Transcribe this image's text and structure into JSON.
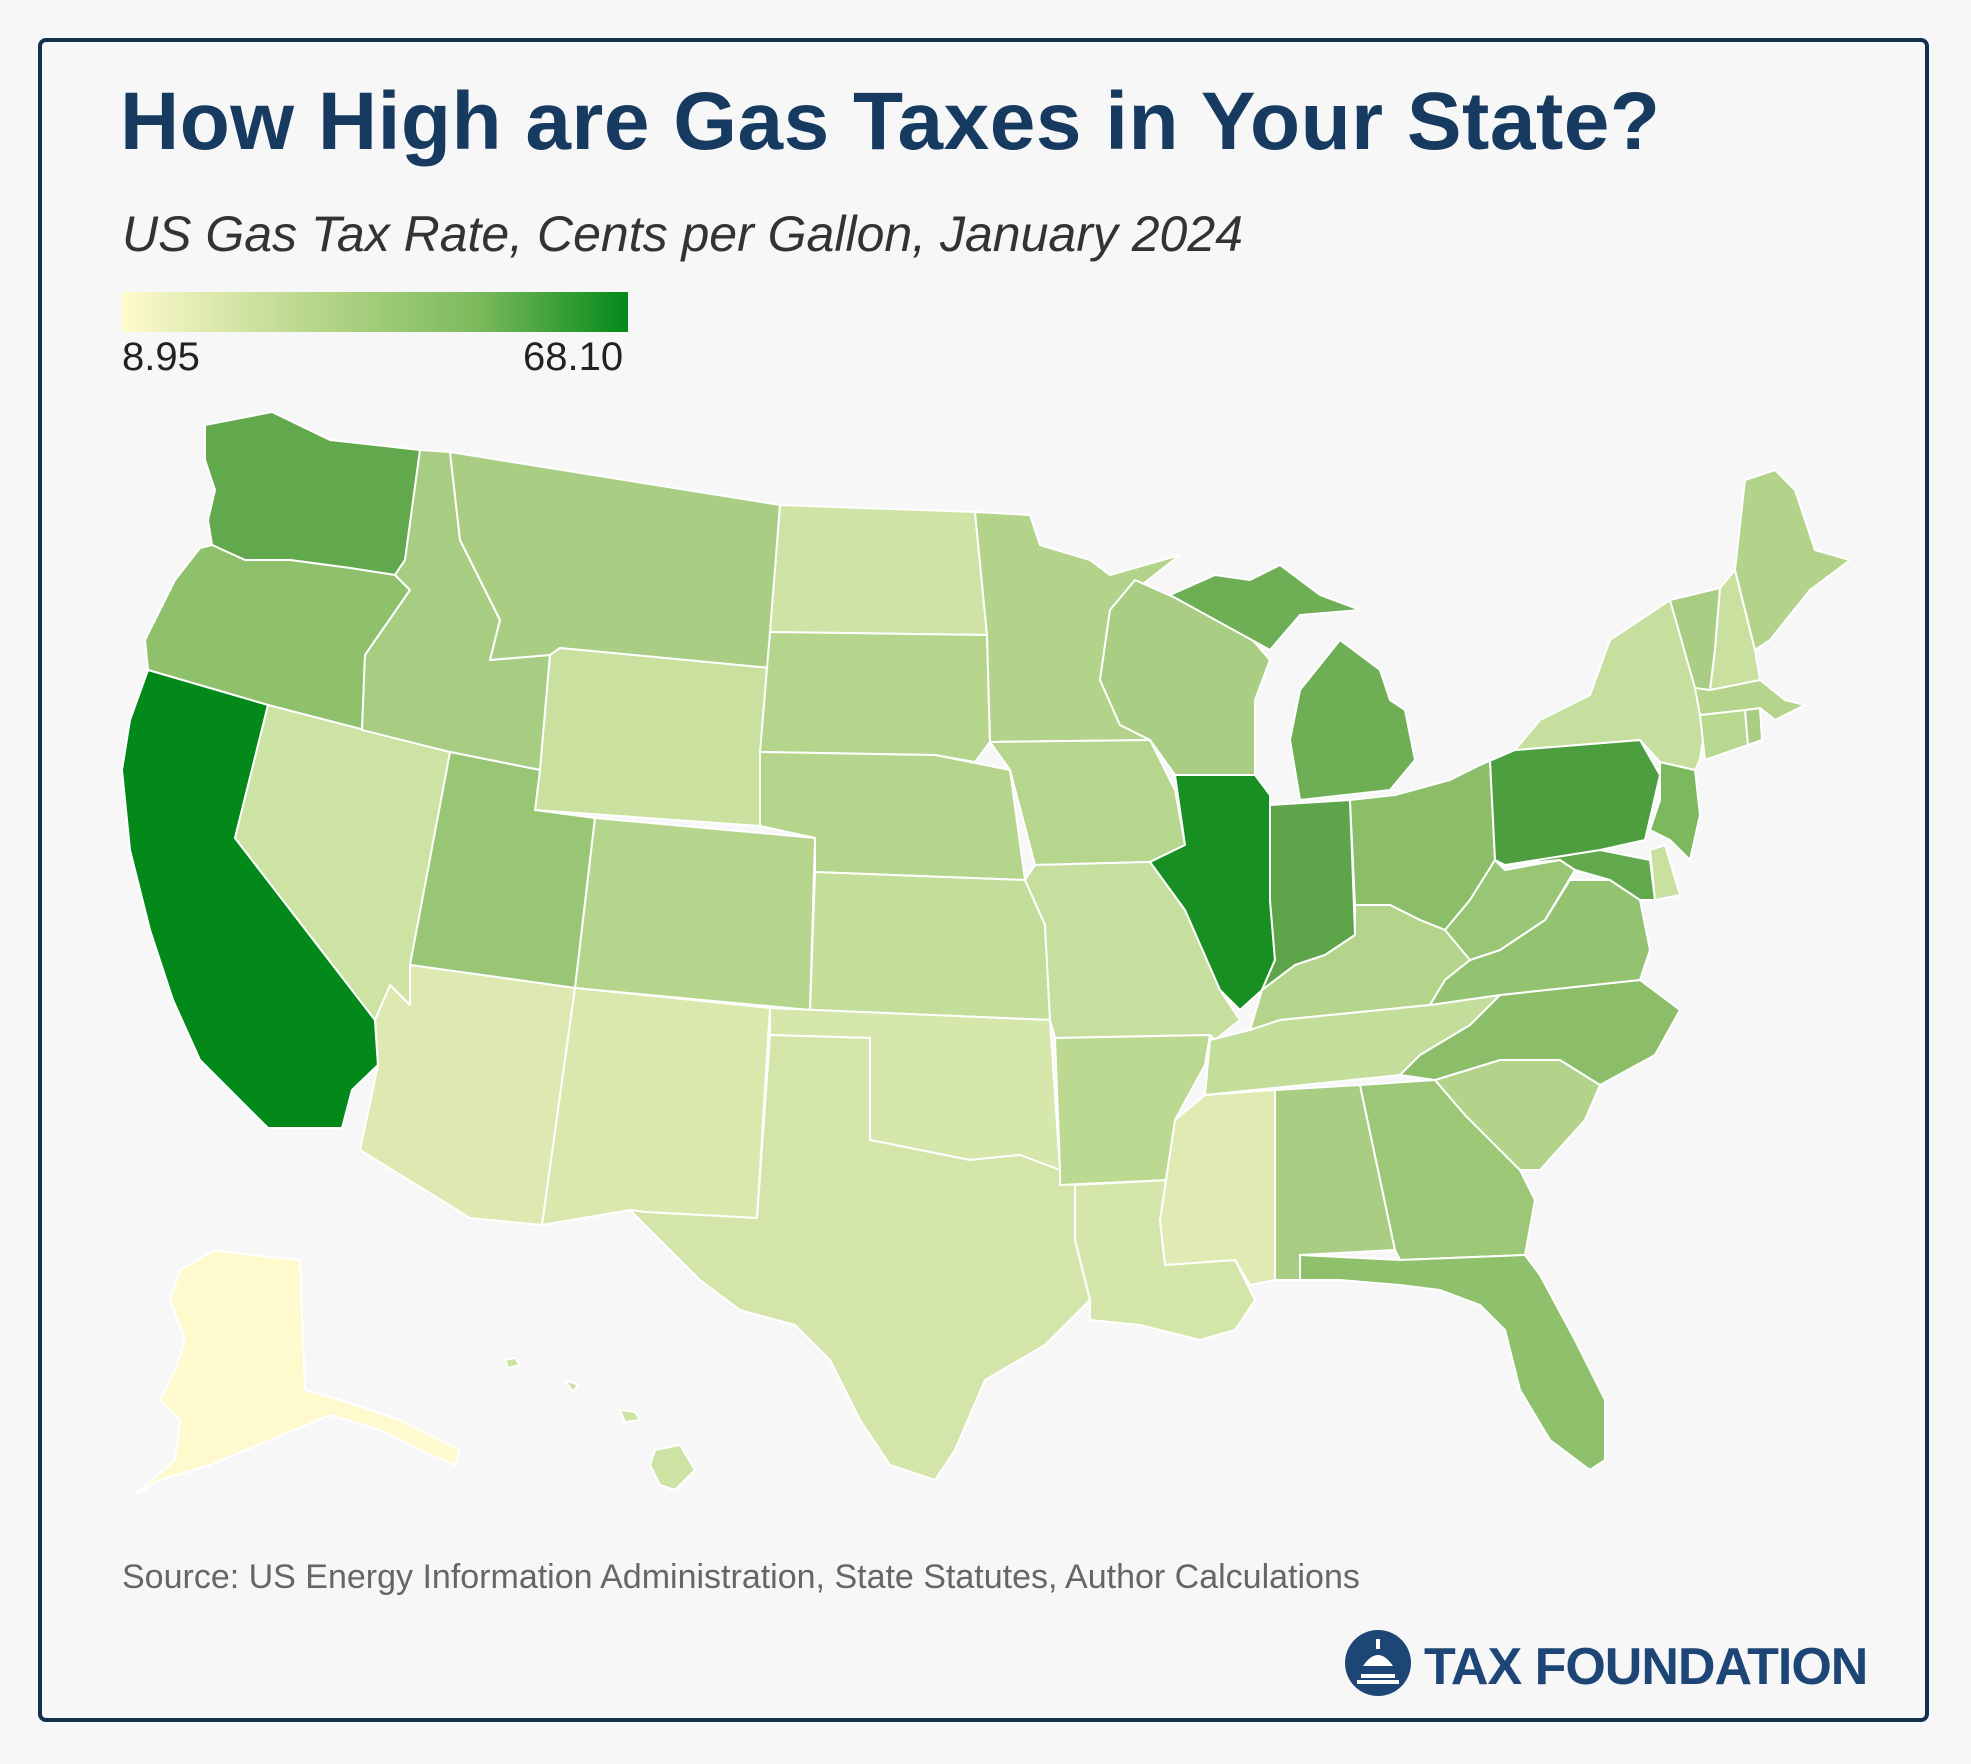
{
  "title": "How High are Gas Taxes in Your State?",
  "subtitle": "US Gas Tax Rate, Cents per Gallon, January 2024",
  "legend": {
    "min_label": "8.95",
    "max_label": "68.10",
    "min": 8.95,
    "max": 68.1,
    "colors": [
      "#fffacd",
      "#bcd98f",
      "#7cba5c",
      "#03891a"
    ]
  },
  "source": "Source: US Energy Information Administration, State Statutes, Author Calculations",
  "logo": {
    "text": "TAX FOUNDATION",
    "icon": "capitol-dome-icon"
  },
  "states": [
    {
      "id": "WA",
      "fill": "#62a84d"
    },
    {
      "id": "OR",
      "fill": "#8fc06c"
    },
    {
      "id": "CA",
      "fill": "#03891a"
    },
    {
      "id": "ID",
      "fill": "#a7cd82"
    },
    {
      "id": "NV",
      "fill": "#cde3a4"
    },
    {
      "id": "MT",
      "fill": "#a8cd83"
    },
    {
      "id": "WY",
      "fill": "#c9e09f"
    },
    {
      "id": "UT",
      "fill": "#98c674"
    },
    {
      "id": "AZ",
      "fill": "#dde9b1"
    },
    {
      "id": "CO",
      "fill": "#b5d58c"
    },
    {
      "id": "NM",
      "fill": "#dae8ae"
    },
    {
      "id": "ND",
      "fill": "#cfe3a6"
    },
    {
      "id": "SD",
      "fill": "#b5d58c"
    },
    {
      "id": "NE",
      "fill": "#b5d58c"
    },
    {
      "id": "KS",
      "fill": "#c3dd9a"
    },
    {
      "id": "OK",
      "fill": "#d5e7ab"
    },
    {
      "id": "TX",
      "fill": "#d3e5a8"
    },
    {
      "id": "MN",
      "fill": "#b2d389"
    },
    {
      "id": "IA",
      "fill": "#b6d68d"
    },
    {
      "id": "MO",
      "fill": "#c7df9e"
    },
    {
      "id": "AR",
      "fill": "#bcd992"
    },
    {
      "id": "LA",
      "fill": "#d3e5a8"
    },
    {
      "id": "WI",
      "fill": "#a9ce83"
    },
    {
      "id": "IL",
      "fill": "#178f23"
    },
    {
      "id": "MI",
      "fill": "#6eae55"
    },
    {
      "id": "IN",
      "fill": "#5ea44b"
    },
    {
      "id": "OH",
      "fill": "#8cbd69"
    },
    {
      "id": "KY",
      "fill": "#b4d48b"
    },
    {
      "id": "TN",
      "fill": "#c3dd9a"
    },
    {
      "id": "MS",
      "fill": "#e0ebb4"
    },
    {
      "id": "AL",
      "fill": "#a8cd83"
    },
    {
      "id": "GA",
      "fill": "#9bc777"
    },
    {
      "id": "FL",
      "fill": "#8fc06c"
    },
    {
      "id": "SC",
      "fill": "#b2d389"
    },
    {
      "id": "NC",
      "fill": "#8cbd69"
    },
    {
      "id": "VA",
      "fill": "#93c270"
    },
    {
      "id": "WV",
      "fill": "#99c675"
    },
    {
      "id": "MD",
      "fill": "#62a84d"
    },
    {
      "id": "DE",
      "fill": "#c9e09f"
    },
    {
      "id": "PA",
      "fill": "#4c9e3f"
    },
    {
      "id": "NJ",
      "fill": "#7cb85e"
    },
    {
      "id": "NY",
      "fill": "#c7df9e"
    },
    {
      "id": "CT",
      "fill": "#b8d78f"
    },
    {
      "id": "RI",
      "fill": "#a8cd83"
    },
    {
      "id": "MA",
      "fill": "#b5d58c"
    },
    {
      "id": "VT",
      "fill": "#a8cd83"
    },
    {
      "id": "NH",
      "fill": "#c9e09f"
    },
    {
      "id": "ME",
      "fill": "#b2d389"
    },
    {
      "id": "AK",
      "fill": "#fffacd"
    },
    {
      "id": "HI",
      "fill": "#cde3a4"
    }
  ]
}
